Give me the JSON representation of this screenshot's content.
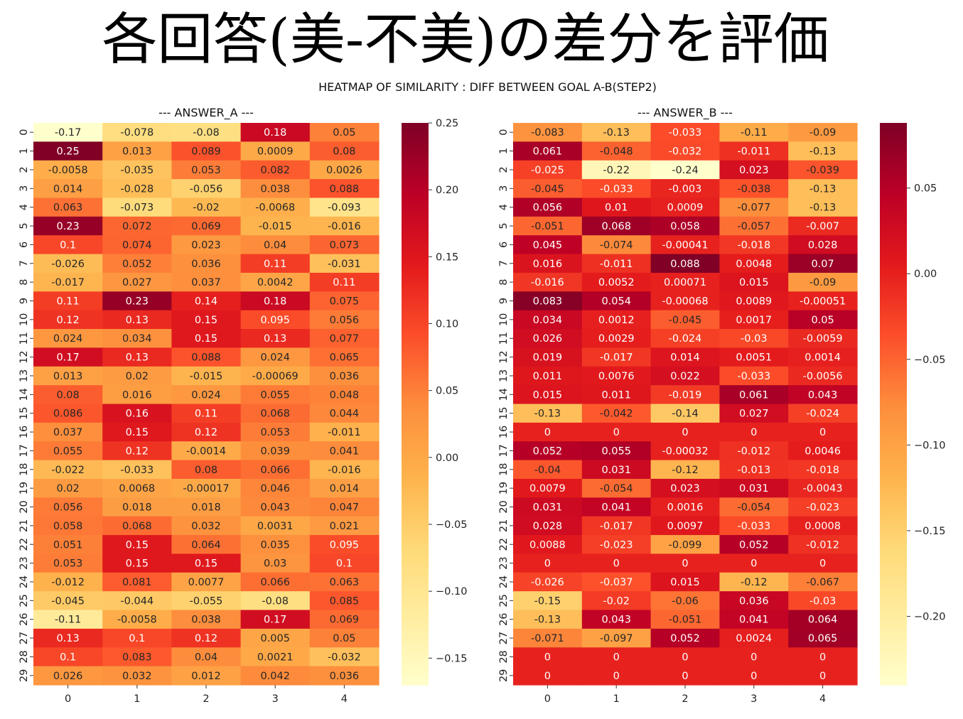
{
  "slide": {
    "title": "各回答(美-不美)の差分を評価"
  },
  "chart_data": {
    "type": "heatmap",
    "title": "HEATMAP OF SIMILARITY : DIFF BETWEEN GOAL A-B(STEP2)",
    "colormap": "YlOrRd",
    "colors": [
      "#ffffcc",
      "#ffeda0",
      "#fed976",
      "#feb24c",
      "#fd8d3c",
      "#fc4e2a",
      "#e31a1c",
      "#bd0026",
      "#800026"
    ],
    "panels": [
      {
        "title": "--- ANSWER_A ---",
        "x_ticks": [
          "0",
          "1",
          "2",
          "3",
          "4"
        ],
        "y_ticks": [
          "0",
          "1",
          "2",
          "3",
          "4",
          "5",
          "6",
          "7",
          "8",
          "9",
          "10",
          "11",
          "12",
          "13",
          "14",
          "15",
          "16",
          "17",
          "18",
          "19",
          "20",
          "21",
          "22",
          "23",
          "24",
          "25",
          "26",
          "27",
          "28",
          "29"
        ],
        "cell_labels": [
          [
            "-0.17",
            "-0.078",
            "-0.08",
            "0.18",
            "0.05"
          ],
          [
            "0.25",
            "0.013",
            "0.089",
            "0.0009",
            "0.08"
          ],
          [
            "-0.0058",
            "-0.035",
            "0.053",
            "0.082",
            "0.0026"
          ],
          [
            "0.014",
            "-0.028",
            "-0.056",
            "0.038",
            "0.088"
          ],
          [
            "0.063",
            "-0.073",
            "-0.02",
            "-0.0068",
            "-0.093"
          ],
          [
            "0.23",
            "0.072",
            "0.069",
            "-0.015",
            "-0.016"
          ],
          [
            "0.1",
            "0.074",
            "0.023",
            "0.04",
            "0.073"
          ],
          [
            "-0.026",
            "0.052",
            "0.036",
            "0.11",
            "-0.031"
          ],
          [
            "-0.017",
            "0.027",
            "0.037",
            "0.0042",
            "0.11"
          ],
          [
            "0.11",
            "0.23",
            "0.14",
            "0.18",
            "0.075"
          ],
          [
            "0.12",
            "0.13",
            "0.15",
            "0.095",
            "0.056"
          ],
          [
            "0.024",
            "0.034",
            "0.15",
            "0.13",
            "0.077"
          ],
          [
            "0.17",
            "0.13",
            "0.088",
            "0.024",
            "0.065"
          ],
          [
            "0.013",
            "0.02",
            "-0.015",
            "-0.00069",
            "0.036"
          ],
          [
            "0.08",
            "0.016",
            "0.024",
            "0.055",
            "0.048"
          ],
          [
            "0.086",
            "0.16",
            "0.11",
            "0.068",
            "0.044"
          ],
          [
            "0.037",
            "0.15",
            "0.12",
            "0.053",
            "-0.011"
          ],
          [
            "0.055",
            "0.12",
            "-0.0014",
            "0.039",
            "0.041"
          ],
          [
            "-0.022",
            "-0.033",
            "0.08",
            "0.066",
            "-0.016"
          ],
          [
            "0.02",
            "0.0068",
            "-0.00017",
            "0.046",
            "0.014"
          ],
          [
            "0.056",
            "0.018",
            "0.018",
            "0.043",
            "0.047"
          ],
          [
            "0.058",
            "0.068",
            "0.032",
            "0.0031",
            "0.021"
          ],
          [
            "0.051",
            "0.15",
            "0.064",
            "0.035",
            "0.095"
          ],
          [
            "0.053",
            "0.15",
            "0.15",
            "0.03",
            "0.1"
          ],
          [
            "-0.012",
            "0.081",
            "0.0077",
            "0.066",
            "0.063"
          ],
          [
            "-0.045",
            "-0.044",
            "-0.055",
            "-0.08",
            "0.085"
          ],
          [
            "-0.11",
            "-0.0058",
            "0.038",
            "0.17",
            "0.069"
          ],
          [
            "0.13",
            "0.1",
            "0.12",
            "0.005",
            "0.05"
          ],
          [
            "0.1",
            "0.083",
            "0.04",
            "0.0021",
            "-0.032"
          ],
          [
            "0.026",
            "0.032",
            "0.012",
            "0.042",
            "0.036"
          ]
        ],
        "vmin": -0.17,
        "vmax": 0.25,
        "colorbar_ticks": [
          "0.25",
          "0.20",
          "0.15",
          "0.10",
          "0.05",
          "0.00",
          "−0.05",
          "−0.10",
          "−0.15"
        ]
      },
      {
        "title": "--- ANSWER_B ---",
        "x_ticks": [
          "0",
          "1",
          "2",
          "3",
          "4"
        ],
        "y_ticks": [
          "0",
          "1",
          "2",
          "3",
          "4",
          "5",
          "6",
          "7",
          "8",
          "9",
          "10",
          "11",
          "12",
          "13",
          "14",
          "15",
          "16",
          "17",
          "18",
          "19",
          "20",
          "21",
          "22",
          "23",
          "24",
          "25",
          "26",
          "27",
          "28",
          "29"
        ],
        "cell_labels": [
          [
            "-0.083",
            "-0.13",
            "-0.033",
            "-0.11",
            "-0.09"
          ],
          [
            "0.061",
            "-0.048",
            "-0.032",
            "-0.011",
            "-0.13"
          ],
          [
            "-0.025",
            "-0.22",
            "-0.24",
            "0.023",
            "-0.039"
          ],
          [
            "-0.045",
            "-0.033",
            "-0.003",
            "-0.038",
            "-0.13"
          ],
          [
            "0.056",
            "0.01",
            "0.0009",
            "-0.077",
            "-0.13"
          ],
          [
            "-0.051",
            "0.068",
            "0.058",
            "-0.057",
            "-0.007"
          ],
          [
            "0.045",
            "-0.074",
            "-0.00041",
            "-0.018",
            "0.028"
          ],
          [
            "0.016",
            "-0.011",
            "0.088",
            "0.0048",
            "0.07"
          ],
          [
            "-0.016",
            "0.0052",
            "0.00071",
            "0.015",
            "-0.09"
          ],
          [
            "0.083",
            "0.054",
            "-0.00068",
            "0.0089",
            "-0.00051"
          ],
          [
            "0.034",
            "0.0012",
            "-0.045",
            "0.0017",
            "0.05"
          ],
          [
            "0.026",
            "0.0029",
            "-0.024",
            "-0.03",
            "-0.0059"
          ],
          [
            "0.019",
            "-0.017",
            "0.014",
            "0.0051",
            "0.0014"
          ],
          [
            "0.011",
            "0.0076",
            "0.022",
            "-0.033",
            "-0.0056"
          ],
          [
            "0.015",
            "0.011",
            "-0.019",
            "0.061",
            "0.043"
          ],
          [
            "-0.13",
            "-0.042",
            "-0.14",
            "0.027",
            "-0.024"
          ],
          [
            "0",
            "0",
            "0",
            "0",
            "0"
          ],
          [
            "0.052",
            "0.055",
            "-0.00032",
            "-0.012",
            "0.0046"
          ],
          [
            "-0.04",
            "0.031",
            "-0.12",
            "-0.013",
            "-0.018"
          ],
          [
            "0.0079",
            "-0.054",
            "0.023",
            "0.031",
            "-0.0043"
          ],
          [
            "0.031",
            "0.041",
            "0.0016",
            "-0.054",
            "-0.023"
          ],
          [
            "0.028",
            "-0.017",
            "0.0097",
            "-0.033",
            "0.0008"
          ],
          [
            "0.0088",
            "-0.023",
            "-0.099",
            "0.052",
            "-0.012"
          ],
          [
            "0",
            "0",
            "0",
            "0",
            "0"
          ],
          [
            "-0.026",
            "-0.037",
            "0.015",
            "-0.12",
            "-0.067"
          ],
          [
            "-0.15",
            "-0.02",
            "-0.06",
            "0.036",
            "-0.03"
          ],
          [
            "-0.13",
            "0.043",
            "-0.051",
            "0.041",
            "0.064"
          ],
          [
            "-0.071",
            "-0.097",
            "0.052",
            "0.0024",
            "0.065"
          ],
          [
            "0",
            "0",
            "0",
            "0",
            "0"
          ],
          [
            "0",
            "0",
            "0",
            "0",
            "0"
          ]
        ],
        "vmin": -0.24,
        "vmax": 0.088,
        "colorbar_ticks": [
          "0.05",
          "0.00",
          "−0.05",
          "−0.10",
          "−0.15",
          "−0.20"
        ]
      }
    ]
  }
}
